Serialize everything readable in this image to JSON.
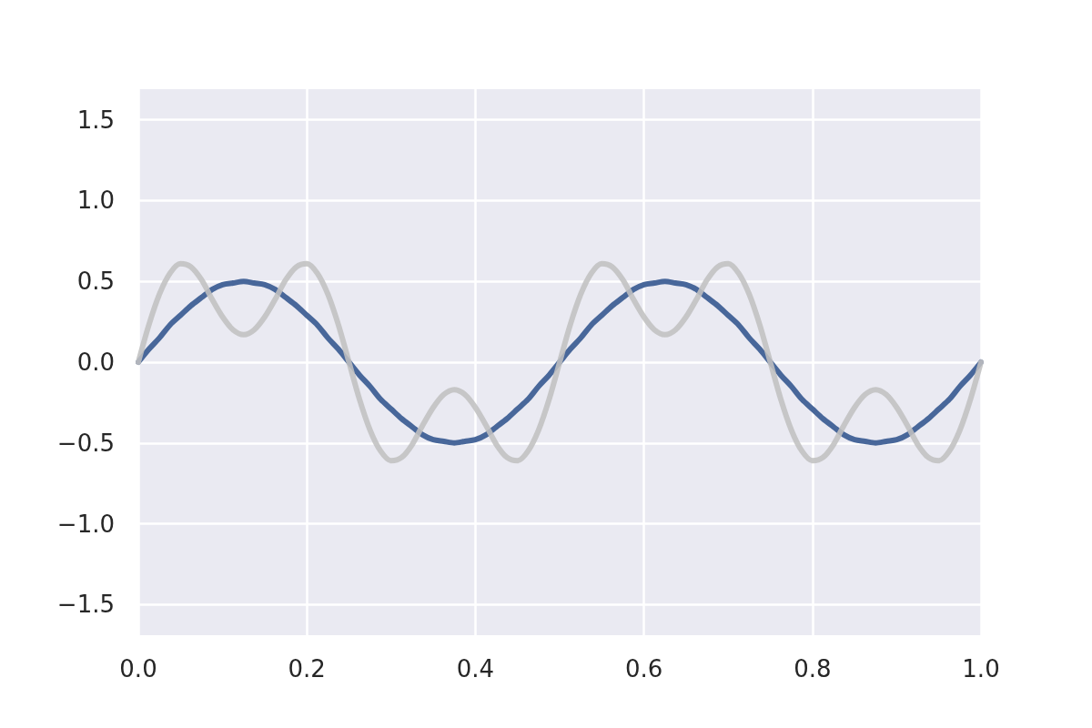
{
  "chart_data": {
    "type": "line",
    "x": [
      0,
      0.0125,
      0.025,
      0.0375,
      0.05,
      0.0625,
      0.075,
      0.0875,
      0.1,
      0.1125,
      0.125,
      0.1375,
      0.15,
      0.1625,
      0.175,
      0.1875,
      0.2,
      0.2125,
      0.225,
      0.2375,
      0.25,
      0.2625,
      0.275,
      0.2875,
      0.3,
      0.3125,
      0.325,
      0.3375,
      0.35,
      0.3625,
      0.375,
      0.3875,
      0.4,
      0.4125,
      0.425,
      0.4375,
      0.45,
      0.4625,
      0.475,
      0.4875,
      0.5,
      0.5125,
      0.525,
      0.5375,
      0.55,
      0.5625,
      0.575,
      0.5875,
      0.6,
      0.6125,
      0.625,
      0.6375,
      0.65,
      0.6625,
      0.675,
      0.6875,
      0.7,
      0.7125,
      0.725,
      0.7375,
      0.75,
      0.7625,
      0.775,
      0.7875,
      0.8,
      0.8125,
      0.825,
      0.8375,
      0.85,
      0.8625,
      0.875,
      0.8875,
      0.9,
      0.9125,
      0.925,
      0.9375,
      0.95,
      0.9625,
      0.975,
      0.9875,
      1
    ],
    "series": [
      {
        "color": "#48679a",
        "values": [
          0,
          0.08,
          0.15,
          0.23,
          0.29,
          0.35,
          0.4,
          0.45,
          0.48,
          0.49,
          0.5,
          0.49,
          0.48,
          0.45,
          0.4,
          0.35,
          0.29,
          0.23,
          0.15,
          0.08,
          0,
          -0.08,
          -0.15,
          -0.23,
          -0.29,
          -0.35,
          -0.4,
          -0.45,
          -0.48,
          -0.49,
          -0.5,
          -0.49,
          -0.48,
          -0.45,
          -0.4,
          -0.35,
          -0.29,
          -0.23,
          -0.15,
          -0.08,
          0,
          0.08,
          0.15,
          0.23,
          0.29,
          0.35,
          0.4,
          0.45,
          0.48,
          0.49,
          0.5,
          0.49,
          0.48,
          0.45,
          0.4,
          0.35,
          0.29,
          0.23,
          0.15,
          0.08,
          0,
          -0.08,
          -0.15,
          -0.23,
          -0.29,
          -0.35,
          -0.4,
          -0.45,
          -0.48,
          -0.49,
          -0.5,
          -0.49,
          -0.48,
          -0.45,
          -0.4,
          -0.35,
          -0.29,
          -0.23,
          -0.15,
          -0.08,
          0
        ]
      },
      {
        "color": "#c0c0c0",
        "values": [
          0,
          0.23,
          0.42,
          0.55,
          0.61,
          0.59,
          0.51,
          0.39,
          0.28,
          0.2,
          0.17,
          0.2,
          0.28,
          0.39,
          0.51,
          0.59,
          0.61,
          0.55,
          0.42,
          0.23,
          0,
          -0.23,
          -0.42,
          -0.55,
          -0.61,
          -0.59,
          -0.51,
          -0.39,
          -0.28,
          -0.2,
          -0.17,
          -0.2,
          -0.28,
          -0.39,
          -0.51,
          -0.59,
          -0.61,
          -0.55,
          -0.42,
          -0.23,
          0,
          0.23,
          0.42,
          0.55,
          0.61,
          0.59,
          0.51,
          0.39,
          0.28,
          0.2,
          0.17,
          0.2,
          0.28,
          0.39,
          0.51,
          0.59,
          0.61,
          0.55,
          0.42,
          0.23,
          0,
          -0.23,
          -0.42,
          -0.55,
          -0.61,
          -0.59,
          -0.51,
          -0.39,
          -0.28,
          -0.2,
          -0.17,
          -0.2,
          -0.28,
          -0.39,
          -0.51,
          -0.59,
          -0.61,
          -0.55,
          -0.42,
          -0.23,
          0
        ]
      }
    ],
    "xlim": [
      0,
      1
    ],
    "xticks": [
      {
        "value": 0,
        "label": "0.0"
      },
      0.2,
      0.4,
      0.6,
      0.8,
      {
        "value": 1,
        "label": "1.0"
      }
    ],
    "ylim": [
      -1.69,
      1.69
    ],
    "yticks": [
      {
        "value": -1.5,
        "label": "−1.5"
      },
      {
        "value": -1,
        "label": "−1.0"
      },
      {
        "value": -0.5,
        "label": "−0.5"
      },
      {
        "value": 0,
        "label": "0.0"
      },
      0.5,
      {
        "value": 1,
        "label": "1.0"
      },
      1.5
    ],
    "grid": true,
    "line_style": "solid"
  }
}
